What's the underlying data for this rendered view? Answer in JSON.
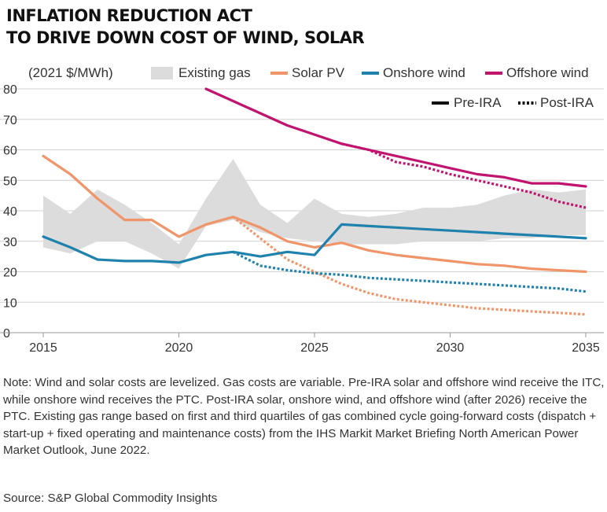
{
  "title_lines": [
    "INFLATION REDUCTION ACT",
    "TO DRIVE DOWN COST OF WIND, SOLAR"
  ],
  "note": "Note: Wind and solar costs are levelized. Gas costs are variable. Pre-IRA solar and offshore wind receive the ITC, while onshore wind receives the PTC. Post-IRA solar, onshore wind, and offshore wind (after 2026) receive the PTC. Existing gas range based on first and third quartiles of gas combined cycle going-forward costs (dispatch + start-up + fixed operating and maintenance costs) from the IHS Markit Market Briefing North American Power Market Outlook, June 2022.",
  "source": "Source: S&P Global Commodity Insights",
  "colors": {
    "gas": "#dcdcdc",
    "solar": "#f0956a",
    "onshore": "#1f82ad",
    "offshore": "#c0146e",
    "grid": "#d0d0d0",
    "axis": "#9a9a9a"
  },
  "chart_data": {
    "type": "line",
    "ylabel": "(2021 $/MWh)",
    "ylim": [
      0,
      80
    ],
    "yticks": [
      0,
      10,
      20,
      30,
      40,
      50,
      60,
      70,
      80
    ],
    "xlim": [
      2015,
      2035
    ],
    "xticks": [
      2015,
      2020,
      2025,
      2030,
      2035
    ],
    "grid": true,
    "legend": [
      {
        "key": "gas",
        "label": "Existing gas",
        "kind": "band"
      },
      {
        "key": "solar",
        "label": "Solar PV",
        "kind": "line"
      },
      {
        "key": "onshore",
        "label": "Onshore wind",
        "kind": "line"
      },
      {
        "key": "offshore",
        "label": "Offshore wind",
        "kind": "line"
      },
      {
        "key": "pre",
        "label": "Pre-IRA",
        "kind": "solid-style"
      },
      {
        "key": "post",
        "label": "Post-IRA",
        "kind": "dotted-style"
      }
    ],
    "band": {
      "name": "Existing gas",
      "x": [
        2015,
        2016,
        2017,
        2018,
        2019,
        2020,
        2021,
        2022,
        2023,
        2024,
        2025,
        2026,
        2027,
        2028,
        2029,
        2030,
        2031,
        2032,
        2033,
        2034,
        2035
      ],
      "low": [
        28,
        26,
        30,
        30,
        26,
        21,
        35,
        37,
        33,
        31,
        30,
        29,
        29,
        29,
        30,
        30,
        30,
        31,
        31,
        32,
        32
      ],
      "high": [
        45,
        39,
        47,
        42,
        36,
        29,
        44,
        57,
        42,
        36,
        44,
        39,
        38,
        39,
        41,
        41,
        42,
        45,
        47,
        46,
        47
      ]
    },
    "series": [
      {
        "name": "Solar PV",
        "color_key": "solar",
        "style": "pre",
        "x": [
          2015,
          2016,
          2017,
          2018,
          2019,
          2020,
          2021,
          2022,
          2023,
          2024,
          2025,
          2026,
          2027,
          2028,
          2029,
          2030,
          2031,
          2032,
          2033,
          2034,
          2035
        ],
        "y": [
          58,
          52,
          44,
          37,
          37,
          31.5,
          35.5,
          38,
          34.5,
          30,
          28,
          29.5,
          27,
          25.5,
          24.5,
          23.5,
          22.5,
          22,
          21,
          20.5,
          20
        ]
      },
      {
        "name": "Solar PV",
        "color_key": "solar",
        "style": "post",
        "x": [
          2022,
          2023,
          2024,
          2025,
          2026,
          2027,
          2028,
          2029,
          2030,
          2031,
          2032,
          2033,
          2034,
          2035
        ],
        "y": [
          38,
          31,
          24,
          20,
          16,
          13,
          11,
          10,
          9,
          8,
          7.5,
          7,
          6.5,
          6
        ]
      },
      {
        "name": "Onshore wind",
        "color_key": "onshore",
        "style": "pre",
        "x": [
          2015,
          2016,
          2017,
          2018,
          2019,
          2020,
          2021,
          2022,
          2023,
          2024,
          2025,
          2026,
          2027,
          2028,
          2029,
          2030,
          2031,
          2032,
          2033,
          2034,
          2035
        ],
        "y": [
          31.5,
          28,
          24,
          23.5,
          23.5,
          23,
          25.5,
          26.5,
          25,
          26.5,
          25.5,
          35.5,
          35,
          34.5,
          34,
          33.5,
          33,
          32.5,
          32,
          31.5,
          31
        ]
      },
      {
        "name": "Onshore wind",
        "color_key": "onshore",
        "style": "post",
        "x": [
          2022,
          2023,
          2024,
          2025,
          2026,
          2027,
          2028,
          2029,
          2030,
          2031,
          2032,
          2033,
          2034,
          2035
        ],
        "y": [
          26.5,
          22,
          20.5,
          19.5,
          19,
          18,
          17.5,
          17,
          16.5,
          16,
          15.5,
          15,
          14.5,
          13.5
        ]
      },
      {
        "name": "Offshore wind",
        "color_key": "offshore",
        "style": "pre",
        "x": [
          2021,
          2022,
          2023,
          2024,
          2025,
          2026,
          2027,
          2028,
          2029,
          2030,
          2031,
          2032,
          2033,
          2034,
          2035
        ],
        "y": [
          80,
          76,
          72,
          68,
          65,
          62,
          60,
          58,
          56,
          54,
          52,
          51,
          49,
          49,
          48
        ]
      },
      {
        "name": "Offshore wind",
        "color_key": "offshore",
        "style": "post",
        "x": [
          2026,
          2027,
          2028,
          2029,
          2030,
          2031,
          2032,
          2033,
          2034,
          2035
        ],
        "y": [
          62,
          60,
          56,
          54.5,
          52,
          50,
          48,
          46,
          43,
          41
        ]
      }
    ]
  }
}
